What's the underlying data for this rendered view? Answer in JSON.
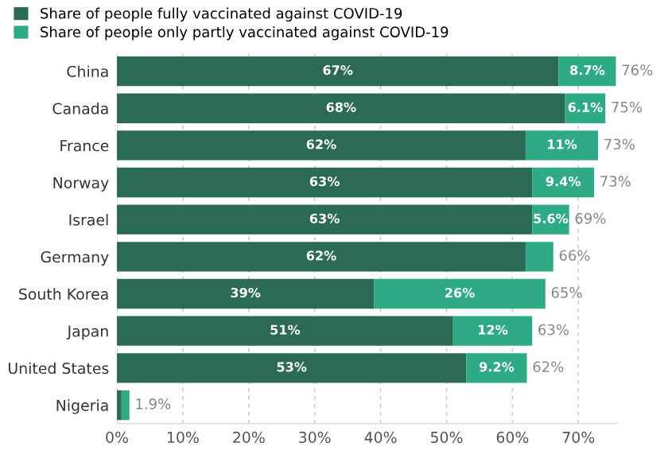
{
  "chart_data": {
    "type": "bar",
    "orientation": "horizontal",
    "stacked": true,
    "legend": "top left",
    "grid": "x",
    "categories": [
      "China",
      "Canada",
      "France",
      "Norway",
      "Israel",
      "Germany",
      "South Korea",
      "Japan",
      "United States",
      "Nigeria"
    ],
    "series": [
      {
        "name": "Share of people fully vaccinated against COVID-19",
        "color": "#2b6a55",
        "values": [
          67,
          68,
          62,
          63,
          63,
          62,
          39,
          51,
          53,
          0.7
        ],
        "value_labels": [
          "67%",
          "68%",
          "62%",
          "63%",
          "63%",
          "62%",
          "39%",
          "51%",
          "53%",
          null
        ]
      },
      {
        "name": "Share of people only partly vaccinated against COVID-19",
        "color": "#2eaa85",
        "values": [
          8.7,
          6.1,
          11,
          9.4,
          5.6,
          4.2,
          26,
          12,
          9.2,
          1.2
        ],
        "value_labels": [
          "8.7%",
          "6.1%",
          "11%",
          "9.4%",
          "5.6%",
          null,
          "26%",
          "12%",
          "9.2%",
          null
        ]
      }
    ],
    "totals": [
      "76%",
      "75%",
      "73%",
      "73%",
      "69%",
      "66%",
      "65%",
      "63%",
      "62%",
      "1.9%"
    ],
    "xlim": [
      0,
      76
    ],
    "xticks": [
      {
        "value": 0,
        "label": "0%"
      },
      {
        "value": 10,
        "label": "10%"
      },
      {
        "value": 20,
        "label": "20%"
      },
      {
        "value": 30,
        "label": "30%"
      },
      {
        "value": 40,
        "label": "40%"
      },
      {
        "value": 50,
        "label": "50%"
      },
      {
        "value": 60,
        "label": "60%"
      },
      {
        "value": 70,
        "label": "70%"
      }
    ]
  }
}
